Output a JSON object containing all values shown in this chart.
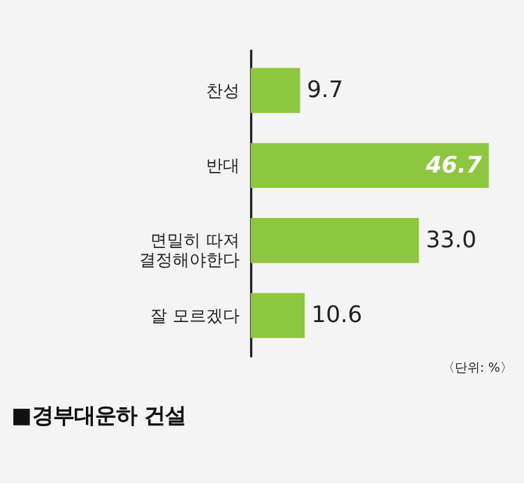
{
  "chart_data": {
    "type": "bar",
    "orientation": "horizontal",
    "title": "■경부대운하 건설",
    "categories": [
      "찬성",
      "반대",
      "면밀히 따져\n결정해야한다",
      "잘 모르겠다"
    ],
    "values": [
      9.7,
      46.7,
      33.0,
      10.6
    ],
    "value_labels": [
      "9.7",
      "46.7",
      "33.0",
      "10.6"
    ],
    "color": "#8dc63f",
    "annotations": [
      "〈단위: %〉"
    ],
    "grid": false,
    "tick_labels": "y"
  }
}
